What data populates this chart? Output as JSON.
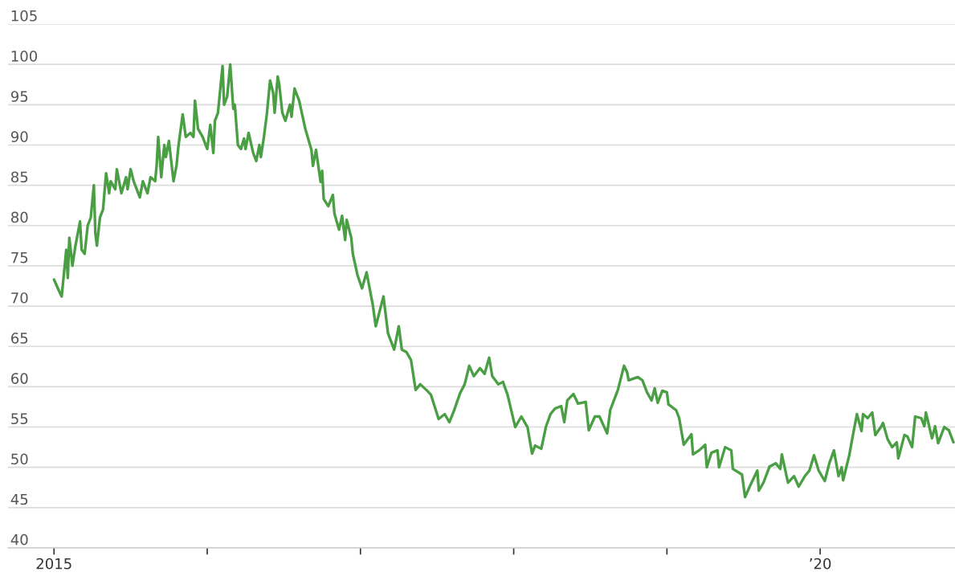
{
  "chart_data": {
    "type": "line",
    "x": [
      2015.0,
      2015.03,
      2015.05,
      2015.07,
      2015.08,
      2015.09,
      2015.1,
      2015.12,
      2015.14,
      2015.15,
      2015.17,
      2015.18,
      2015.2,
      2015.22,
      2015.24,
      2015.26,
      2015.27,
      2015.28,
      2015.3,
      2015.32,
      2015.34,
      2015.36,
      2015.37,
      2015.4,
      2015.41,
      2015.44,
      2015.47,
      2015.48,
      2015.5,
      2015.52,
      2015.55,
      2015.56,
      2015.58,
      2015.61,
      2015.63,
      2015.66,
      2015.67,
      2015.68,
      2015.7,
      2015.72,
      2015.73,
      2015.75,
      2015.78,
      2015.8,
      2015.81,
      2015.82,
      2015.84,
      2015.86,
      2015.89,
      2015.91,
      2015.92,
      2015.94,
      2015.97,
      2016.0,
      2016.02,
      2016.04,
      2016.05,
      2016.07,
      2016.1,
      2016.11,
      2016.13,
      2016.15,
      2016.17,
      2016.18,
      2016.2,
      2016.22,
      2016.24,
      2016.25,
      2016.27,
      2016.3,
      2016.32,
      2016.34,
      2016.35,
      2016.37,
      2016.39,
      2016.41,
      2016.43,
      2016.44,
      2016.46,
      2016.47,
      2016.49,
      2016.51,
      2016.54,
      2016.55,
      2016.57,
      2016.6,
      2016.64,
      2016.68,
      2016.69,
      2016.71,
      2016.74,
      2016.75,
      2016.76,
      2016.79,
      2016.82,
      2016.83,
      2016.86,
      2016.88,
      2016.9,
      2016.91,
      2016.94,
      2016.95,
      2016.98,
      2017.01,
      2017.04,
      2017.08,
      2017.1,
      2017.15,
      2017.18,
      2017.22,
      2017.25,
      2017.27,
      2017.3,
      2017.33,
      2017.36,
      2017.39,
      2017.43,
      2017.46,
      2017.51,
      2017.55,
      2017.58,
      2017.61,
      2017.65,
      2017.68,
      2017.71,
      2017.74,
      2017.78,
      2017.81,
      2017.84,
      2017.86,
      2017.9,
      2017.93,
      2017.96,
      2017.99,
      2018.01,
      2018.05,
      2018.09,
      2018.12,
      2018.14,
      2018.18,
      2018.21,
      2018.24,
      2018.27,
      2018.31,
      2018.33,
      2018.35,
      2018.39,
      2018.42,
      2018.47,
      2018.49,
      2018.53,
      2018.56,
      2018.61,
      2018.63,
      2018.68,
      2018.72,
      2018.74,
      2018.75,
      2018.81,
      2018.84,
      2018.87,
      2018.9,
      2018.92,
      2018.94,
      2018.97,
      2019.0,
      2019.01,
      2019.06,
      2019.08,
      2019.11,
      2019.16,
      2019.17,
      2019.21,
      2019.25,
      2019.26,
      2019.29,
      2019.33,
      2019.34,
      2019.38,
      2019.42,
      2019.43,
      2019.49,
      2019.51,
      2019.54,
      2019.59,
      2019.6,
      2019.63,
      2019.67,
      2019.71,
      2019.74,
      2019.75,
      2019.79,
      2019.83,
      2019.86,
      2019.9,
      2019.93,
      2019.96,
      2019.99,
      2020.03,
      2020.06,
      2020.09,
      2020.12,
      2020.14,
      2020.15,
      2020.19,
      2020.21,
      2020.24,
      2020.27,
      2020.28,
      2020.31,
      2020.34,
      2020.36,
      2020.4,
      2020.41,
      2020.44,
      2020.47,
      2020.5,
      2020.51,
      2020.55,
      2020.57,
      2020.6,
      2020.62,
      2020.66,
      2020.68,
      2020.69,
      2020.73,
      2020.75,
      2020.77,
      2020.81,
      2020.84,
      2020.87
    ],
    "series": [
      {
        "color": "#4a9e44",
        "values": [
          73.3,
          72,
          71.2,
          75,
          77,
          73.5,
          78.5,
          75,
          77.5,
          78.5,
          80.5,
          77,
          76.5,
          80,
          81,
          85,
          79,
          77.5,
          81,
          82,
          86.5,
          84,
          85.5,
          84.5,
          87,
          84,
          86,
          84.5,
          87,
          85.5,
          84,
          83.5,
          85.5,
          84,
          86,
          85.5,
          87.5,
          91,
          86,
          90,
          88.5,
          90.5,
          85.5,
          87.5,
          89.5,
          91,
          93.8,
          91,
          91.5,
          91,
          95.5,
          92,
          91,
          89.5,
          92.5,
          89,
          93,
          94,
          99.8,
          95,
          96,
          100,
          94.5,
          95,
          90,
          89.5,
          90.8,
          89.5,
          91.5,
          89,
          88,
          90,
          88.5,
          91,
          94,
          98,
          96.5,
          94,
          98.5,
          97.5,
          94,
          93,
          95,
          93.5,
          97,
          95.5,
          92,
          89.4,
          87.4,
          89.4,
          85.4,
          86.8,
          83.3,
          82.4,
          83.8,
          81.5,
          79.5,
          81.2,
          78.2,
          80.7,
          78.5,
          76.5,
          73.9,
          72.2,
          74.2,
          70.2,
          67.5,
          71.2,
          66.6,
          64.6,
          67.5,
          64.6,
          64.3,
          63.3,
          59.6,
          60.3,
          59.6,
          59,
          56,
          56.6,
          55.6,
          57,
          59.2,
          60.3,
          62.6,
          61.3,
          62.3,
          61.6,
          63.6,
          61.3,
          60.3,
          60.6,
          59,
          56.6,
          55,
          56.3,
          55,
          51.7,
          52.7,
          52.3,
          55,
          56.6,
          57.3,
          57.6,
          55.6,
          58.3,
          59.1,
          57.9,
          58.1,
          54.6,
          56.3,
          56.3,
          54.2,
          57.1,
          59.6,
          62.6,
          61.8,
          60.8,
          61.2,
          60.8,
          59.3,
          58.3,
          59.8,
          58,
          59.5,
          59.3,
          57.8,
          57.1,
          56.1,
          52.8,
          54.1,
          51.6,
          52.1,
          52.8,
          50,
          51.8,
          52.1,
          50,
          52.5,
          52.1,
          49.8,
          49.1,
          46.3,
          47.6,
          49.6,
          47.1,
          48.1,
          50.1,
          50.5,
          49.8,
          51.6,
          48.1,
          48.9,
          47.6,
          48.9,
          49.6,
          51.5,
          49.6,
          48.3,
          50.5,
          52.1,
          48.9,
          50,
          48.4,
          51.5,
          53.6,
          56.6,
          54.5,
          56.6,
          56.1,
          56.8,
          54,
          55.1,
          55.5,
          53.5,
          52.5,
          53.1,
          51.1,
          54,
          53.8,
          52.5,
          56.3,
          56.1,
          55.1,
          56.8,
          53.6,
          55.1,
          53,
          55,
          54.6,
          53.1
        ]
      }
    ],
    "xlim": [
      2014.7,
      2020.88
    ],
    "xticks": [
      {
        "value": 2015,
        "label": "2015"
      },
      {
        "value": 2016,
        "label": null
      },
      {
        "value": 2017,
        "label": null
      },
      {
        "value": 2018,
        "label": null
      },
      {
        "value": 2019,
        "label": null
      },
      {
        "value": 2020,
        "label": "’20"
      }
    ],
    "ylim": [
      40,
      105
    ],
    "yticks": [
      40,
      45,
      50,
      55,
      60,
      65,
      70,
      75,
      80,
      85,
      90,
      95,
      100,
      105
    ],
    "grid": "y"
  }
}
